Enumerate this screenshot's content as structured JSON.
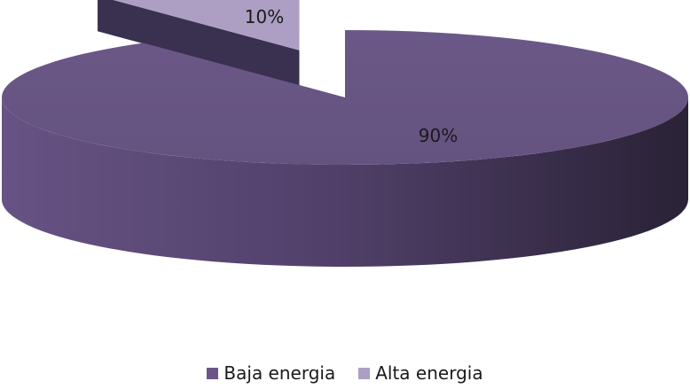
{
  "chart_data": {
    "type": "pie",
    "title": "",
    "slices": [
      {
        "label": "Baja energia",
        "value": 90,
        "data_label": "90%",
        "color": "#6a5787"
      },
      {
        "label": "Alta energia",
        "value": 10,
        "data_label": "10%",
        "color": "#ac9fc3",
        "exploded": true
      }
    ],
    "legend": {
      "position": "bottom"
    },
    "style": "3d-exploded"
  }
}
